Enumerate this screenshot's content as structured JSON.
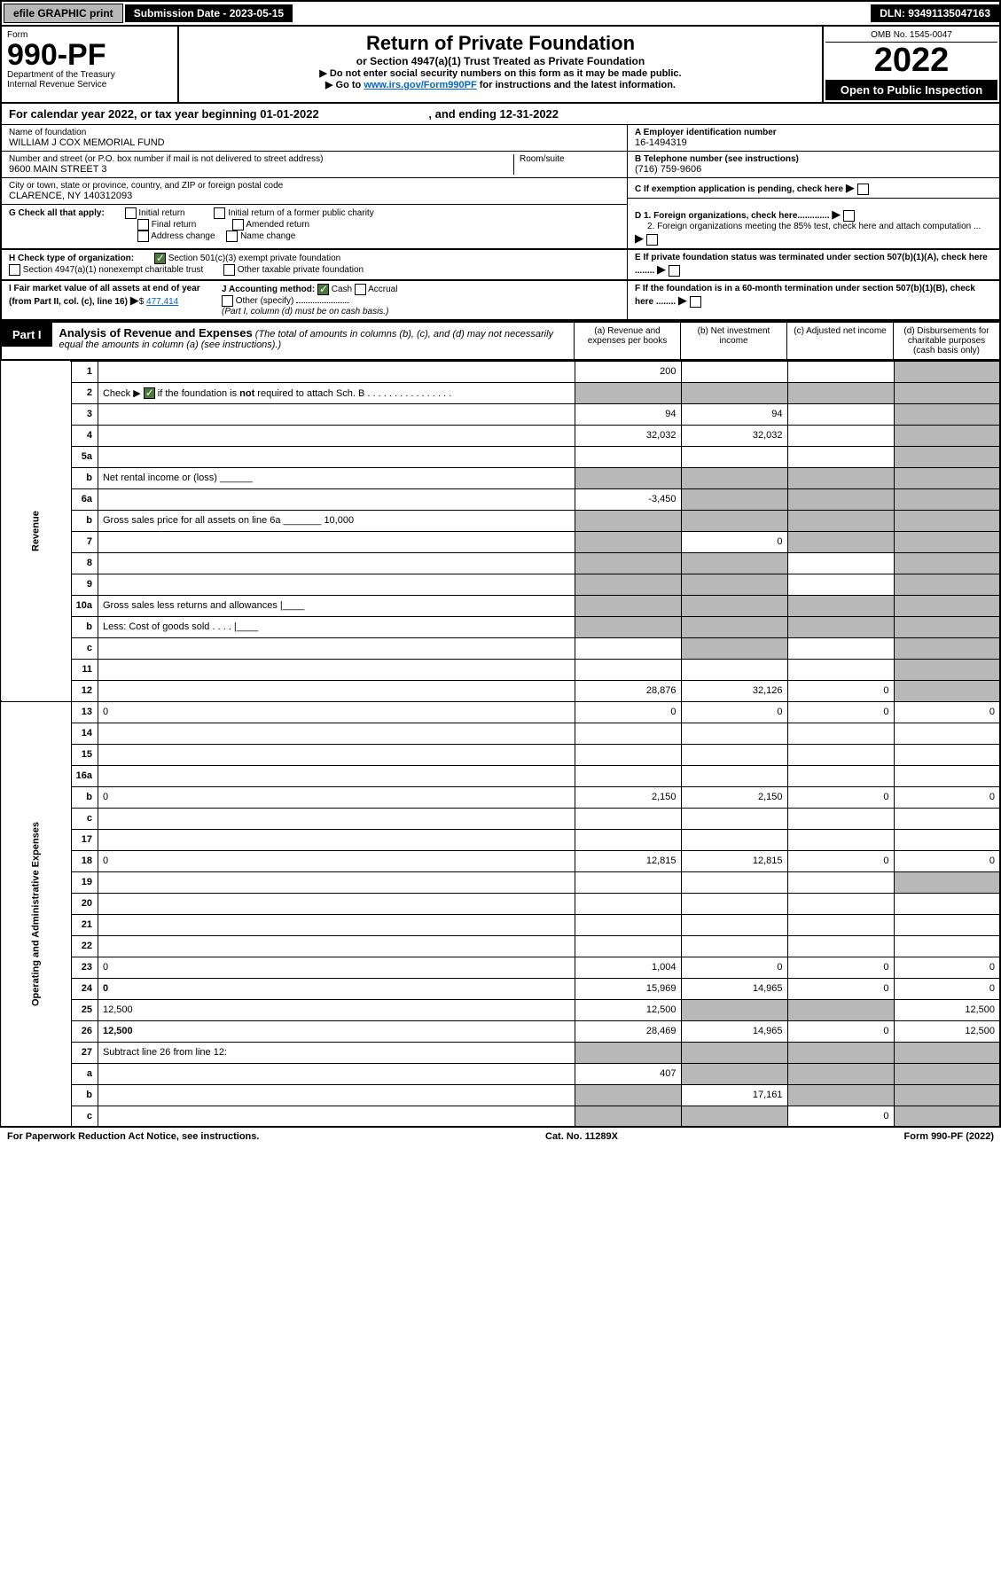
{
  "topbar": {
    "efile": "efile GRAPHIC print",
    "submission": "Submission Date - 2023-05-15",
    "dln": "DLN: 93491135047163"
  },
  "header": {
    "form_label": "Form",
    "form_number": "990-PF",
    "dept": "Department of the Treasury",
    "irs": "Internal Revenue Service",
    "title": "Return of Private Foundation",
    "subtitle": "or Section 4947(a)(1) Trust Treated as Private Foundation",
    "note1": "▶ Do not enter social security numbers on this form as it may be made public.",
    "note2_pre": "▶ Go to ",
    "note2_link": "www.irs.gov/Form990PF",
    "note2_post": " for instructions and the latest information.",
    "omb": "OMB No. 1545-0047",
    "year": "2022",
    "open": "Open to Public Inspection"
  },
  "calendar": {
    "text_a": "For calendar year 2022, or tax year beginning 01-01-2022",
    "text_b": ", and ending 12-31-2022"
  },
  "info": {
    "name_lbl": "Name of foundation",
    "name": "WILLIAM J COX MEMORIAL FUND",
    "addr_lbl": "Number and street (or P.O. box number if mail is not delivered to street address)",
    "addr": "9600 MAIN STREET 3",
    "room_lbl": "Room/suite",
    "city_lbl": "City or town, state or province, country, and ZIP or foreign postal code",
    "city": "CLARENCE, NY  140312093",
    "ein_lbl": "A Employer identification number",
    "ein": "16-1494319",
    "tel_lbl": "B Telephone number (see instructions)",
    "tel": "(716) 759-9606",
    "c_lbl": "C If exemption application is pending, check here",
    "d1_lbl": "D 1. Foreign organizations, check here.............",
    "d2_lbl": "2. Foreign organizations meeting the 85% test, check here and attach computation ...",
    "e_lbl": "E  If private foundation status was terminated under section 507(b)(1)(A), check here ........",
    "f_lbl": "F  If the foundation is in a 60-month termination under section 507(b)(1)(B), check here ........"
  },
  "secG": {
    "lbl": "G Check all that apply:",
    "opts": [
      "Initial return",
      "Final return",
      "Address change",
      "Initial return of a former public charity",
      "Amended return",
      "Name change"
    ]
  },
  "secH": {
    "lbl": "H Check type of organization:",
    "opt1": "Section 501(c)(3) exempt private foundation",
    "opt2": "Section 4947(a)(1) nonexempt charitable trust",
    "opt3": "Other taxable private foundation"
  },
  "secI": {
    "lbl": "I Fair market value of all assets at end of year (from Part II, col. (c), line 16)",
    "val": "477,414",
    "jlbl": "J Accounting method:",
    "cash": "Cash",
    "accrual": "Accrual",
    "other": "Other (specify)",
    "note": "(Part I, column (d) must be on cash basis.)"
  },
  "part1": {
    "tab": "Part I",
    "title": "Analysis of Revenue and Expenses",
    "note": "(The total of amounts in columns (b), (c), and (d) may not necessarily equal the amounts in column (a) (see instructions).)",
    "cols": {
      "a": "(a) Revenue and expenses per books",
      "b": "(b) Net investment income",
      "c": "(c) Adjusted net income",
      "d": "(d) Disbursements for charitable purposes (cash basis only)"
    }
  },
  "vlabels": {
    "rev": "Revenue",
    "exp": "Operating and Administrative Expenses"
  },
  "rows": [
    {
      "n": "1",
      "d": "",
      "a": "200",
      "b": "",
      "c": "",
      "dgrey": true
    },
    {
      "n": "2",
      "d": "Check ▶ ☑ if the foundation is not required to attach Sch. B   .  .  .  .  .  .  .  .  .  .  .  .  .  .  .  .",
      "allgrey": true
    },
    {
      "n": "3",
      "d": "",
      "a": "94",
      "b": "94",
      "c": "",
      "dgrey": true
    },
    {
      "n": "4",
      "d": "",
      "a": "32,032",
      "b": "32,032",
      "c": "",
      "dgrey": true
    },
    {
      "n": "5a",
      "d": "",
      "a": "",
      "b": "",
      "c": "",
      "dgrey": true
    },
    {
      "n": "b",
      "d": "Net rental income or (loss)  ______",
      "allgrey": true
    },
    {
      "n": "6a",
      "d": "",
      "a": "-3,450",
      "b": "",
      "c": "",
      "bgrey": true,
      "cgrey": true,
      "dgrey": true
    },
    {
      "n": "b",
      "d": "Gross sales price for all assets on line 6a _______ 10,000",
      "allgrey": true
    },
    {
      "n": "7",
      "d": "",
      "a": "",
      "b": "0",
      "c": "",
      "agrey": true,
      "cgrey": true,
      "dgrey": true
    },
    {
      "n": "8",
      "d": "",
      "a": "",
      "b": "",
      "c": "",
      "agrey": true,
      "bgrey": true,
      "dgrey": true
    },
    {
      "n": "9",
      "d": "",
      "a": "",
      "b": "",
      "c": "",
      "agrey": true,
      "bgrey": true,
      "dgrey": true
    },
    {
      "n": "10a",
      "d": "Gross sales less returns and allowances  |____",
      "allgrey": true
    },
    {
      "n": "b",
      "d": "Less: Cost of goods sold   .   .   .   .   |____",
      "allgrey": true
    },
    {
      "n": "c",
      "d": "",
      "a": "",
      "b": "",
      "c": "",
      "bgrey": true,
      "dgrey": true
    },
    {
      "n": "11",
      "d": "",
      "a": "",
      "b": "",
      "c": "",
      "dgrey": true
    },
    {
      "n": "12",
      "d": "",
      "a": "28,876",
      "b": "32,126",
      "c": "0",
      "dgrey": true,
      "bold": true
    },
    {
      "n": "13",
      "d": "0",
      "a": "0",
      "b": "0",
      "c": "0"
    },
    {
      "n": "14",
      "d": "",
      "a": "",
      "b": "",
      "c": ""
    },
    {
      "n": "15",
      "d": "",
      "a": "",
      "b": "",
      "c": ""
    },
    {
      "n": "16a",
      "d": "",
      "a": "",
      "b": "",
      "c": ""
    },
    {
      "n": "b",
      "d": "0",
      "a": "2,150",
      "b": "2,150",
      "c": "0"
    },
    {
      "n": "c",
      "d": "",
      "a": "",
      "b": "",
      "c": ""
    },
    {
      "n": "17",
      "d": "",
      "a": "",
      "b": "",
      "c": ""
    },
    {
      "n": "18",
      "d": "0",
      "a": "12,815",
      "b": "12,815",
      "c": "0"
    },
    {
      "n": "19",
      "d": "",
      "a": "",
      "b": "",
      "c": "",
      "dgrey": true
    },
    {
      "n": "20",
      "d": "",
      "a": "",
      "b": "",
      "c": ""
    },
    {
      "n": "21",
      "d": "",
      "a": "",
      "b": "",
      "c": ""
    },
    {
      "n": "22",
      "d": "",
      "a": "",
      "b": "",
      "c": ""
    },
    {
      "n": "23",
      "d": "0",
      "a": "1,004",
      "b": "0",
      "c": "0"
    },
    {
      "n": "24",
      "d": "0",
      "a": "15,969",
      "b": "14,965",
      "c": "0",
      "bold": true
    },
    {
      "n": "25",
      "d": "12,500",
      "a": "12,500",
      "b": "",
      "c": "",
      "bgrey": true,
      "cgrey": true
    },
    {
      "n": "26",
      "d": "12,500",
      "a": "28,469",
      "b": "14,965",
      "c": "0",
      "bold": true
    },
    {
      "n": "27",
      "d": "Subtract line 26 from line 12:",
      "allgrey": true
    },
    {
      "n": "a",
      "d": "",
      "a": "407",
      "b": "",
      "c": "",
      "bgrey": true,
      "cgrey": true,
      "dgrey": true,
      "bold": true
    },
    {
      "n": "b",
      "d": "",
      "a": "",
      "b": "17,161",
      "c": "",
      "agrey": true,
      "cgrey": true,
      "dgrey": true,
      "bold": true
    },
    {
      "n": "c",
      "d": "",
      "a": "",
      "b": "",
      "c": "0",
      "agrey": true,
      "bgrey": true,
      "dgrey": true,
      "bold": true
    }
  ],
  "footer": {
    "left": "For Paperwork Reduction Act Notice, see instructions.",
    "mid": "Cat. No. 11289X",
    "right": "Form 990-PF (2022)"
  }
}
